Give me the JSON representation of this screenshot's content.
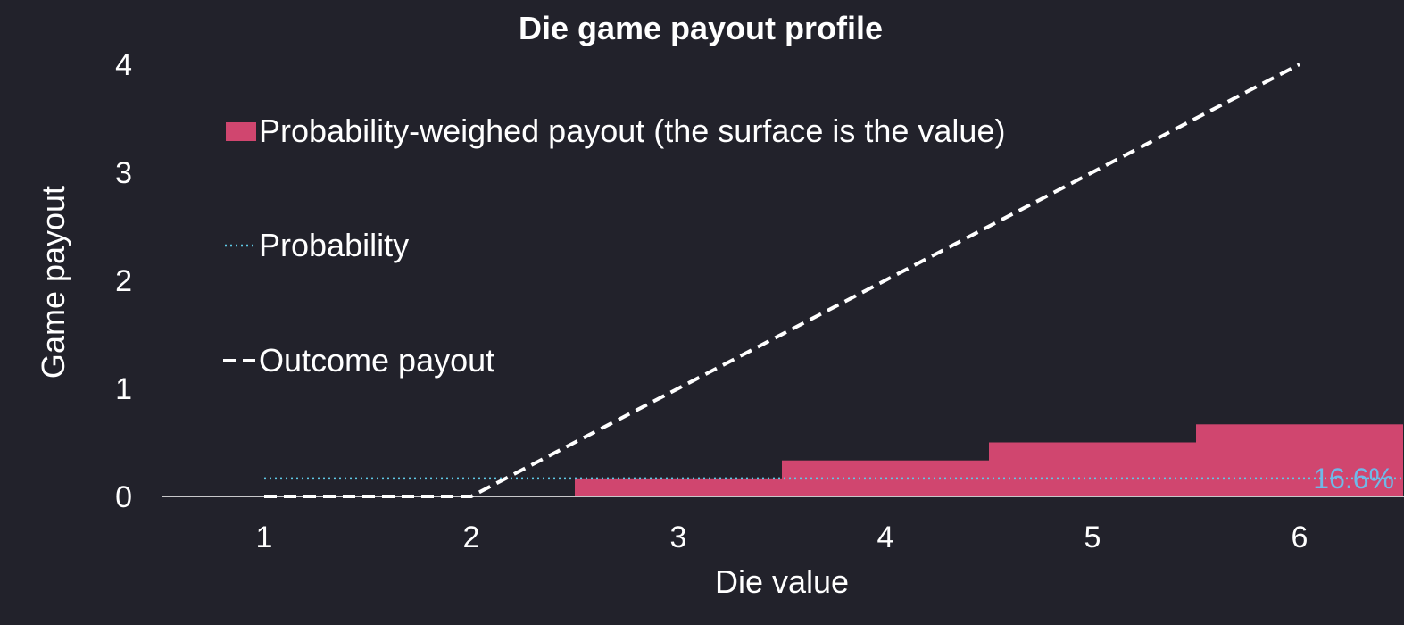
{
  "chart_data": {
    "type": "bar",
    "title": "Die game payout profile",
    "xlabel": "Die value",
    "ylabel": "Game payout",
    "categories": [
      1,
      2,
      3,
      4,
      5,
      6
    ],
    "xlim": [
      0.5,
      6.5
    ],
    "ylim": [
      0,
      4
    ],
    "yticks": [
      0,
      1,
      2,
      3,
      4
    ],
    "legend_position": "top-left",
    "series": [
      {
        "name": "Probability-weighed payout (the surface is the value)",
        "kind": "bar",
        "color": "#d0466f",
        "values": [
          0,
          0,
          0.167,
          0.333,
          0.5,
          0.667
        ]
      },
      {
        "name": "Probability",
        "kind": "line",
        "style": "dotted",
        "color": "#5fc9e6",
        "x": [
          1,
          6.5
        ],
        "values": [
          0.166,
          0.166
        ]
      },
      {
        "name": "Outcome payout",
        "kind": "line",
        "style": "dashed",
        "color": "#ffffff",
        "x": [
          1,
          2,
          6
        ],
        "values": [
          0,
          0,
          4
        ]
      }
    ],
    "annotations": [
      {
        "text": "16.6%",
        "x": 6.5,
        "y": 0.166,
        "color": "#6fb9e8"
      }
    ]
  }
}
